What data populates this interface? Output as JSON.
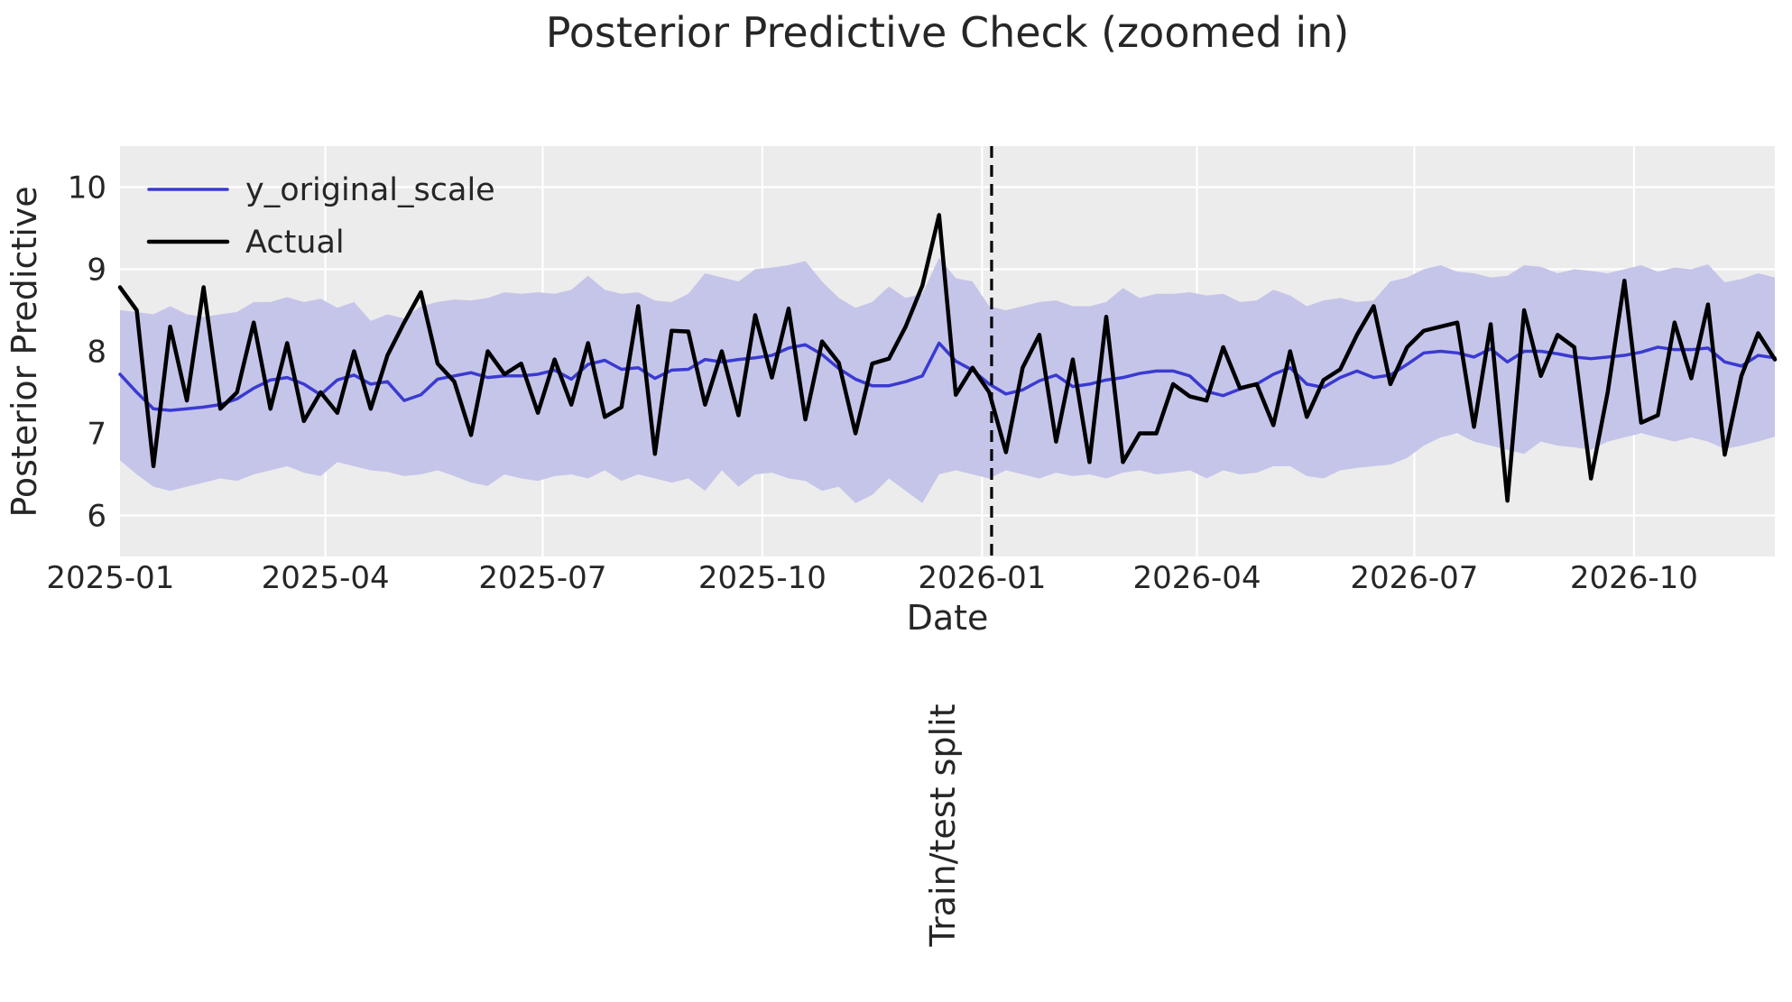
{
  "title": "Posterior Predictive Check (zoomed in)",
  "axes": {
    "x_label": "Date",
    "y_label": "Posterior Predictive",
    "y_ticks": [
      6,
      7,
      8,
      9,
      10
    ],
    "x_ticks": [
      {
        "label": "2025-01",
        "day": -4
      },
      {
        "label": "2025-04",
        "day": 86
      },
      {
        "label": "2025-07",
        "day": 177
      },
      {
        "label": "2025-10",
        "day": 269
      },
      {
        "label": "2026-01",
        "day": 361
      },
      {
        "label": "2026-04",
        "day": 451
      },
      {
        "label": "2026-07",
        "day": 542
      },
      {
        "label": "2026-10",
        "day": 634
      }
    ],
    "x_range_days": [
      0,
      693
    ],
    "y_range": [
      5.5,
      10.5
    ],
    "grid": true,
    "grid_color": "#ffffff",
    "plot_background": "#ececec"
  },
  "legend": {
    "position": "upper-left",
    "items": [
      {
        "label": "y_original_scale",
        "color": "#3a3ad1",
        "line_width": 3.5
      },
      {
        "label": "Actual",
        "color": "#000000",
        "line_width": 4.5
      }
    ]
  },
  "split_line": {
    "label": "Train/test split",
    "day": 365,
    "style": "dashed",
    "color": "#000000"
  },
  "colors": {
    "band": "#c5c5ea",
    "predicted": "#3a3ad1",
    "actual": "#000000",
    "text": "#262626"
  },
  "chart_data": {
    "type": "line",
    "title": "Posterior Predictive Check (zoomed in)",
    "xlabel": "Date",
    "ylabel": "Posterior Predictive",
    "x_start_day": 0,
    "x_step_days": 7,
    "n_points": 100,
    "xlim_days": [
      0,
      693
    ],
    "ylim": [
      5.5,
      10.5
    ],
    "legend_position": "upper left",
    "grid": true,
    "series": [
      {
        "name": "y_original_scale",
        "type": "line",
        "values": [
          7.72,
          7.5,
          7.3,
          7.28,
          7.3,
          7.32,
          7.35,
          7.42,
          7.55,
          7.65,
          7.68,
          7.6,
          7.47,
          7.65,
          7.71,
          7.6,
          7.63,
          7.4,
          7.47,
          7.66,
          7.7,
          7.74,
          7.68,
          7.7,
          7.7,
          7.72,
          7.77,
          7.66,
          7.84,
          7.89,
          7.78,
          7.8,
          7.67,
          7.77,
          7.78,
          7.9,
          7.87,
          7.9,
          7.92,
          7.95,
          8.04,
          8.08,
          7.96,
          7.79,
          7.66,
          7.58,
          7.58,
          7.63,
          7.7,
          8.1,
          7.88,
          7.77,
          7.6,
          7.48,
          7.53,
          7.64,
          7.71,
          7.57,
          7.6,
          7.65,
          7.68,
          7.73,
          7.76,
          7.76,
          7.7,
          7.51,
          7.46,
          7.54,
          7.6,
          7.72,
          7.8,
          7.6,
          7.56,
          7.68,
          7.76,
          7.68,
          7.71,
          7.84,
          7.98,
          8.0,
          7.98,
          7.93,
          8.03,
          7.87,
          8.0,
          8.0,
          7.97,
          7.93,
          7.91,
          7.93,
          7.95,
          7.99,
          8.05,
          8.02,
          8.02,
          8.04,
          7.87,
          7.82,
          7.95,
          7.92
        ]
      },
      {
        "name": "Actual",
        "type": "line",
        "values": [
          8.78,
          8.5,
          6.6,
          8.3,
          7.4,
          8.78,
          7.3,
          7.5,
          8.35,
          7.3,
          8.1,
          7.15,
          7.5,
          7.25,
          8.0,
          7.3,
          7.95,
          8.35,
          8.72,
          7.85,
          7.63,
          6.98,
          8.0,
          7.72,
          7.85,
          7.25,
          7.9,
          7.35,
          8.1,
          7.2,
          7.32,
          8.55,
          6.75,
          8.25,
          8.24,
          7.35,
          8.0,
          7.22,
          8.44,
          7.68,
          8.52,
          7.17,
          8.12,
          7.86,
          7.0,
          7.85,
          7.91,
          8.3,
          8.8,
          9.66,
          7.47,
          7.8,
          7.5,
          6.77,
          7.8,
          8.2,
          6.9,
          7.9,
          6.65,
          8.42,
          6.65,
          7.0,
          7.0,
          7.6,
          7.45,
          7.4,
          8.05,
          7.55,
          7.6,
          7.1,
          8.0,
          7.2,
          7.65,
          7.78,
          8.2,
          8.55,
          7.6,
          8.05,
          8.25,
          8.3,
          8.35,
          7.08,
          8.33,
          6.18,
          8.5,
          7.7,
          8.2,
          8.05,
          6.45,
          7.5,
          8.86,
          7.13,
          7.22,
          8.35,
          7.67,
          8.57,
          6.74,
          7.7,
          8.22,
          7.9
        ]
      },
      {
        "name": "hdi_band_upper",
        "type": "band-edge",
        "values": [
          8.5,
          8.48,
          8.45,
          8.55,
          8.45,
          8.42,
          8.45,
          8.48,
          8.6,
          8.6,
          8.66,
          8.6,
          8.64,
          8.53,
          8.6,
          8.37,
          8.45,
          8.4,
          8.55,
          8.6,
          8.63,
          8.62,
          8.65,
          8.72,
          8.7,
          8.72,
          8.7,
          8.75,
          8.92,
          8.75,
          8.7,
          8.72,
          8.62,
          8.6,
          8.7,
          8.95,
          8.9,
          8.85,
          9.0,
          9.02,
          9.05,
          9.1,
          8.85,
          8.65,
          8.53,
          8.6,
          8.79,
          8.65,
          8.7,
          9.14,
          8.89,
          8.85,
          8.55,
          8.5,
          8.55,
          8.6,
          8.62,
          8.55,
          8.55,
          8.6,
          8.77,
          8.65,
          8.7,
          8.7,
          8.72,
          8.68,
          8.7,
          8.6,
          8.62,
          8.75,
          8.68,
          8.55,
          8.62,
          8.65,
          8.6,
          8.62,
          8.85,
          8.9,
          9.0,
          9.05,
          8.97,
          8.95,
          8.9,
          8.92,
          9.05,
          9.03,
          8.95,
          9.0,
          8.98,
          8.95,
          9.0,
          9.05,
          8.97,
          9.02,
          9.0,
          9.06,
          8.84,
          8.88,
          8.95,
          8.9
        ]
      },
      {
        "name": "hdi_band_lower",
        "type": "band-edge",
        "values": [
          6.67,
          6.5,
          6.35,
          6.3,
          6.35,
          6.4,
          6.45,
          6.42,
          6.5,
          6.55,
          6.6,
          6.52,
          6.48,
          6.65,
          6.6,
          6.55,
          6.53,
          6.48,
          6.5,
          6.55,
          6.48,
          6.4,
          6.36,
          6.5,
          6.45,
          6.42,
          6.48,
          6.5,
          6.45,
          6.55,
          6.42,
          6.5,
          6.45,
          6.4,
          6.45,
          6.3,
          6.55,
          6.35,
          6.5,
          6.52,
          6.45,
          6.42,
          6.3,
          6.35,
          6.15,
          6.25,
          6.45,
          6.3,
          6.15,
          6.5,
          6.55,
          6.5,
          6.45,
          6.55,
          6.5,
          6.45,
          6.52,
          6.48,
          6.5,
          6.45,
          6.52,
          6.55,
          6.5,
          6.52,
          6.55,
          6.45,
          6.55,
          6.5,
          6.52,
          6.6,
          6.6,
          6.48,
          6.45,
          6.55,
          6.58,
          6.6,
          6.62,
          6.7,
          6.85,
          6.95,
          7.0,
          6.9,
          6.85,
          6.8,
          6.75,
          6.9,
          6.85,
          6.83,
          6.8,
          6.9,
          6.95,
          7.0,
          6.95,
          6.9,
          6.95,
          6.9,
          6.81,
          6.85,
          6.9,
          6.96
        ]
      }
    ],
    "annotations": [
      {
        "text": "Train/test split",
        "x_day": 365,
        "type": "vline-dashed"
      }
    ]
  }
}
